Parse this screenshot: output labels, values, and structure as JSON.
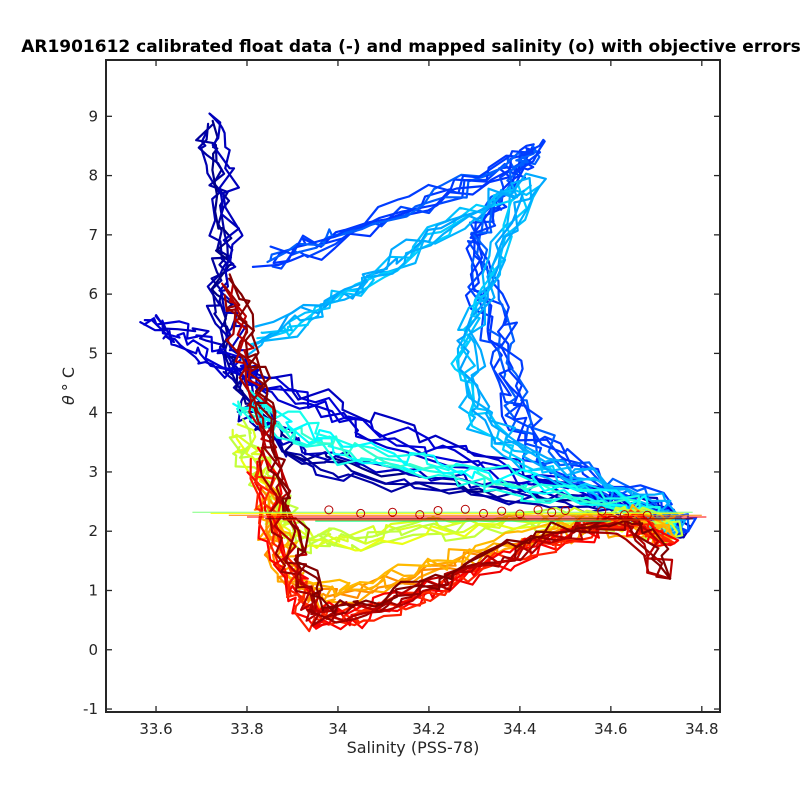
{
  "chart_data": {
    "type": "line",
    "title": "AR1901612 calibrated float data (-) and mapped salinity (o) with objective errors",
    "xlabel": "Salinity (PSS-78)",
    "ylabel_symbol": "θ",
    "ylabel_unit": "° C",
    "xlim": [
      33.49,
      34.84
    ],
    "ylim": [
      -1.05,
      9.95
    ],
    "xticks": [
      33.6,
      33.8,
      34.0,
      34.2,
      34.4,
      34.6,
      34.8
    ],
    "xtick_labels": [
      "33.6",
      "33.8",
      "34",
      "34.2",
      "34.4",
      "34.6",
      "34.8"
    ],
    "yticks": [
      -1,
      0,
      1,
      2,
      3,
      4,
      5,
      6,
      7,
      8,
      9
    ],
    "ytick_labels": [
      "-1",
      "0",
      "1",
      "2",
      "3",
      "4",
      "5",
      "6",
      "7",
      "8",
      "9"
    ],
    "grid": false,
    "colormap": "jet",
    "profile_groups": [
      {
        "name": "early-deep-blue",
        "colormap_position": 0.03,
        "count": 6,
        "points": [
          [
            33.71,
            8.9
          ],
          [
            33.74,
            8.2
          ],
          [
            33.76,
            7.0
          ],
          [
            33.74,
            6.2
          ],
          [
            33.76,
            5.4
          ],
          [
            33.79,
            4.6
          ],
          [
            33.83,
            4.0
          ],
          [
            33.9,
            3.4
          ],
          [
            34.05,
            3.0
          ],
          [
            34.3,
            2.75
          ],
          [
            34.55,
            2.55
          ],
          [
            34.7,
            2.35
          ],
          [
            34.76,
            1.9
          ]
        ]
      },
      {
        "name": "blue-fresh-warm",
        "colormap_position": 0.09,
        "count": 5,
        "points": [
          [
            33.59,
            5.55
          ],
          [
            33.66,
            5.3
          ],
          [
            33.73,
            5.0
          ],
          [
            33.82,
            4.6
          ],
          [
            33.95,
            4.2
          ],
          [
            34.1,
            3.7
          ],
          [
            34.3,
            3.2
          ],
          [
            34.5,
            2.8
          ],
          [
            34.65,
            2.5
          ],
          [
            34.75,
            2.1
          ]
        ]
      },
      {
        "name": "mid-blue-warm-saline",
        "colormap_position": 0.2,
        "count": 7,
        "points": [
          [
            33.85,
            6.6
          ],
          [
            34.0,
            6.95
          ],
          [
            34.2,
            7.6
          ],
          [
            34.38,
            8.2
          ],
          [
            34.44,
            8.5
          ],
          [
            34.36,
            7.7
          ],
          [
            34.3,
            6.9
          ],
          [
            34.34,
            5.7
          ],
          [
            34.38,
            4.6
          ],
          [
            34.42,
            3.6
          ],
          [
            34.55,
            2.9
          ],
          [
            34.68,
            2.5
          ],
          [
            34.77,
            2.0
          ]
        ]
      },
      {
        "name": "light-blue",
        "colormap_position": 0.3,
        "count": 7,
        "points": [
          [
            33.82,
            5.2
          ],
          [
            33.97,
            5.8
          ],
          [
            34.12,
            6.5
          ],
          [
            34.28,
            7.3
          ],
          [
            34.42,
            7.9
          ],
          [
            34.34,
            6.4
          ],
          [
            34.28,
            5.2
          ],
          [
            34.3,
            4.1
          ],
          [
            34.4,
            3.3
          ],
          [
            34.56,
            2.8
          ],
          [
            34.7,
            2.4
          ],
          [
            34.75,
            2.0
          ]
        ]
      },
      {
        "name": "cyan",
        "colormap_position": 0.4,
        "count": 6,
        "points": [
          [
            33.79,
            4.2
          ],
          [
            33.86,
            3.9
          ],
          [
            33.95,
            3.6
          ],
          [
            34.05,
            3.35
          ],
          [
            34.2,
            3.1
          ],
          [
            34.35,
            2.9
          ],
          [
            34.5,
            2.7
          ],
          [
            34.65,
            2.45
          ],
          [
            34.74,
            2.1
          ]
        ]
      },
      {
        "name": "yellow-green",
        "colormap_position": 0.58,
        "count": 6,
        "points": [
          [
            33.78,
            3.7
          ],
          [
            33.82,
            3.2
          ],
          [
            33.86,
            2.7
          ],
          [
            33.88,
            2.2
          ],
          [
            33.92,
            1.9
          ],
          [
            34.0,
            1.85
          ],
          [
            34.15,
            2.0
          ],
          [
            34.35,
            2.15
          ],
          [
            34.55,
            2.25
          ],
          [
            34.7,
            2.2
          ],
          [
            34.74,
            1.9
          ]
        ]
      },
      {
        "name": "yellow-orange",
        "colormap_position": 0.72,
        "count": 6,
        "points": [
          [
            33.84,
            2.7
          ],
          [
            33.86,
            2.0
          ],
          [
            33.89,
            1.3
          ],
          [
            33.95,
            0.95
          ],
          [
            34.05,
            1.05
          ],
          [
            34.2,
            1.35
          ],
          [
            34.35,
            1.75
          ],
          [
            34.5,
            2.05
          ],
          [
            34.65,
            2.2
          ],
          [
            34.74,
            1.9
          ]
        ]
      },
      {
        "name": "orange-red",
        "colormap_position": 0.86,
        "count": 6,
        "points": [
          [
            33.82,
            3.2
          ],
          [
            33.86,
            2.1
          ],
          [
            33.9,
            1.1
          ],
          [
            33.95,
            0.55
          ],
          [
            34.05,
            0.6
          ],
          [
            34.2,
            0.95
          ],
          [
            34.35,
            1.5
          ],
          [
            34.5,
            1.95
          ],
          [
            34.65,
            2.2
          ],
          [
            34.74,
            1.8
          ]
        ]
      },
      {
        "name": "dark-red-late",
        "colormap_position": 0.97,
        "count": 6,
        "points": [
          [
            33.77,
            6.2
          ],
          [
            33.8,
            5.2
          ],
          [
            33.83,
            4.2
          ],
          [
            33.86,
            3.2
          ],
          [
            33.89,
            2.2
          ],
          [
            33.92,
            1.3
          ],
          [
            33.96,
            0.65
          ],
          [
            34.05,
            0.7
          ],
          [
            34.2,
            1.1
          ],
          [
            34.35,
            1.6
          ],
          [
            34.5,
            2.0
          ],
          [
            34.65,
            2.2
          ],
          [
            34.73,
            1.2
          ]
        ]
      }
    ],
    "mapped_salinity_points": [
      {
        "x": 33.98,
        "y": 2.36
      },
      {
        "x": 34.05,
        "y": 2.3
      },
      {
        "x": 34.12,
        "y": 2.32
      },
      {
        "x": 34.18,
        "y": 2.28
      },
      {
        "x": 34.22,
        "y": 2.35
      },
      {
        "x": 34.28,
        "y": 2.37
      },
      {
        "x": 34.32,
        "y": 2.3
      },
      {
        "x": 34.36,
        "y": 2.34
      },
      {
        "x": 34.4,
        "y": 2.29
      },
      {
        "x": 34.44,
        "y": 2.36
      },
      {
        "x": 34.47,
        "y": 2.32
      },
      {
        "x": 34.5,
        "y": 2.35
      },
      {
        "x": 34.58,
        "y": 2.34
      },
      {
        "x": 34.63,
        "y": 2.28
      },
      {
        "x": 34.68,
        "y": 2.27
      }
    ],
    "objective_error_bars": [
      {
        "x_min": 33.68,
        "x_max": 34.78,
        "y": 2.32
      },
      {
        "x_min": 33.72,
        "x_max": 34.76,
        "y": 2.3
      },
      {
        "x_min": 33.76,
        "x_max": 34.8,
        "y": 2.27
      },
      {
        "x_min": 33.8,
        "x_max": 34.81,
        "y": 2.24
      },
      {
        "x_min": 33.84,
        "x_max": 34.78,
        "y": 2.21
      },
      {
        "x_min": 33.88,
        "x_max": 34.72,
        "y": 2.19
      },
      {
        "x_min": 33.95,
        "x_max": 34.6,
        "y": 2.17
      }
    ]
  }
}
